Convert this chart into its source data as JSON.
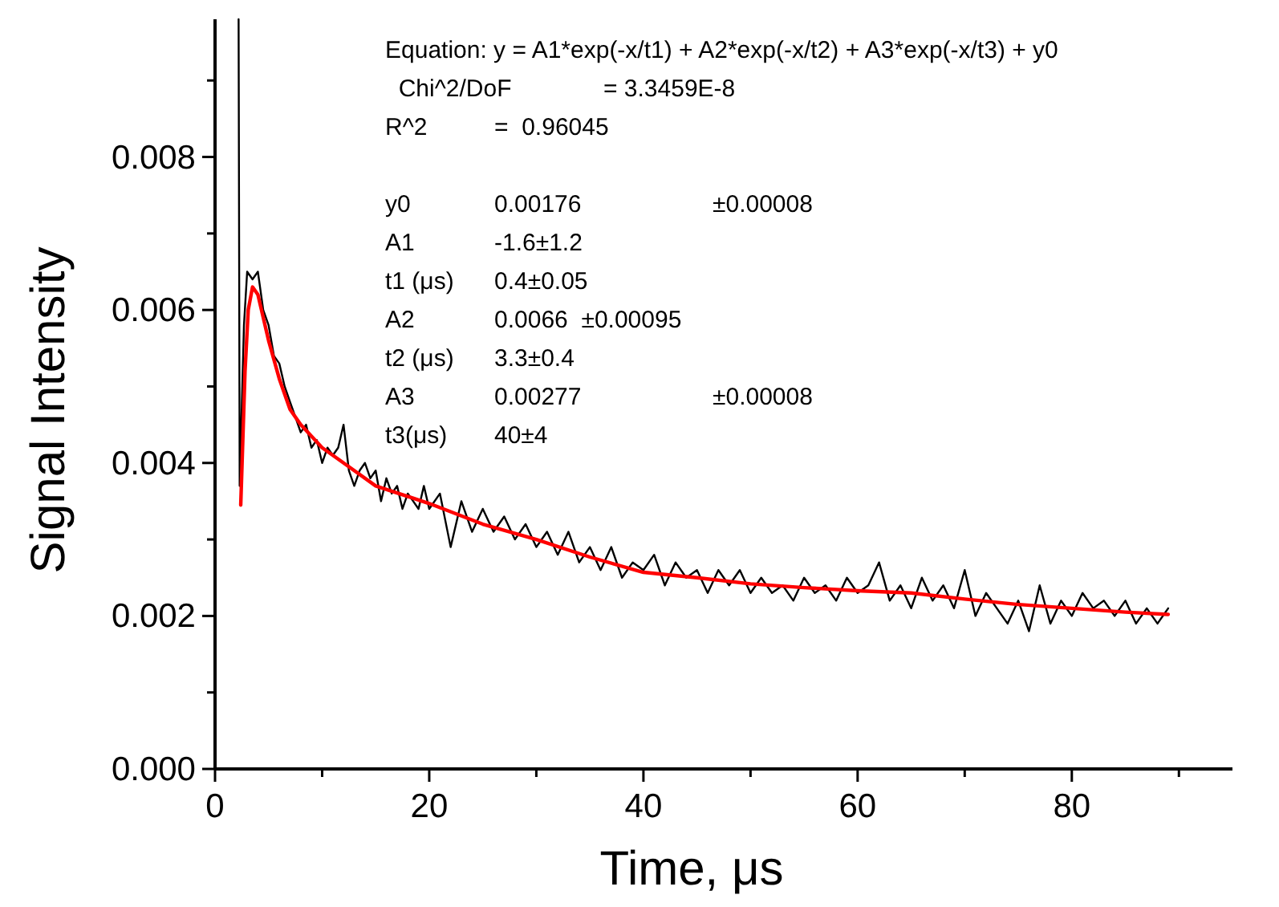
{
  "chart_data": {
    "type": "line",
    "xlabel": "Time, μs",
    "ylabel": "Signal Intensity",
    "xlim": [
      0,
      95
    ],
    "ylim": [
      0,
      0.0098
    ],
    "xticks": [
      0,
      {
        "value": 10,
        "label": null
      },
      20,
      {
        "value": 30,
        "label": null
      },
      40,
      {
        "value": 50,
        "label": null
      },
      60,
      {
        "value": 70,
        "label": null
      },
      80,
      {
        "value": 90,
        "label": null
      }
    ],
    "yticks": [
      {
        "value": 0,
        "label": "0.000"
      },
      {
        "value": 0.001,
        "label": null
      },
      {
        "value": 0.002,
        "label": "0.002"
      },
      {
        "value": 0.003,
        "label": null
      },
      {
        "value": 0.004,
        "label": "0.004"
      },
      {
        "value": 0.005,
        "label": null
      },
      {
        "value": 0.006,
        "label": "0.006"
      },
      {
        "value": 0.007,
        "label": null
      },
      {
        "value": 0.008,
        "label": "0.008"
      },
      {
        "value": 0.009,
        "label": null
      }
    ],
    "grid": false,
    "marker": "none",
    "line_style": "solid",
    "series": [
      {
        "color": "#000000",
        "x": [
          2.2,
          2.3,
          2.7,
          3,
          3.5,
          4,
          4.5,
          5,
          5.5,
          6,
          6.5,
          7,
          7.5,
          8,
          8.5,
          9,
          9.5,
          10,
          10.5,
          11,
          11.5,
          12,
          12.5,
          13,
          13.5,
          14,
          14.5,
          15,
          15.5,
          16,
          16.5,
          17,
          17.5,
          18,
          18.5,
          19,
          19.5,
          20,
          21,
          22,
          23,
          24,
          25,
          26,
          27,
          28,
          29,
          30,
          31,
          32,
          33,
          34,
          35,
          36,
          37,
          38,
          39,
          40,
          41,
          42,
          43,
          44,
          45,
          46,
          47,
          48,
          49,
          50,
          51,
          52,
          53,
          54,
          55,
          56,
          57,
          58,
          59,
          60,
          61,
          62,
          63,
          64,
          65,
          66,
          67,
          68,
          69,
          70,
          71,
          72,
          73,
          74,
          75,
          76,
          77,
          78,
          79,
          80,
          81,
          82,
          83,
          84,
          85,
          86,
          87,
          88,
          89
        ],
        "values": [
          0.0098,
          0.0037,
          0.0058,
          0.0065,
          0.0064,
          0.0065,
          0.006,
          0.0058,
          0.0054,
          0.0053,
          0.005,
          0.0048,
          0.0046,
          0.0044,
          0.0045,
          0.0042,
          0.0043,
          0.004,
          0.0042,
          0.0041,
          0.0042,
          0.0045,
          0.0039,
          0.0037,
          0.0039,
          0.004,
          0.0038,
          0.0039,
          0.0035,
          0.0038,
          0.0036,
          0.0037,
          0.0034,
          0.0036,
          0.0035,
          0.0034,
          0.0037,
          0.0034,
          0.0036,
          0.0029,
          0.0035,
          0.0031,
          0.0034,
          0.0031,
          0.0033,
          0.003,
          0.0032,
          0.0029,
          0.0031,
          0.0028,
          0.0031,
          0.0027,
          0.0029,
          0.0026,
          0.0029,
          0.0025,
          0.0027,
          0.0026,
          0.0028,
          0.0024,
          0.0027,
          0.0025,
          0.0026,
          0.0023,
          0.0026,
          0.0024,
          0.0026,
          0.0023,
          0.0025,
          0.0023,
          0.0024,
          0.0022,
          0.0025,
          0.0023,
          0.0024,
          0.0022,
          0.0025,
          0.0023,
          0.0024,
          0.0027,
          0.0022,
          0.0024,
          0.0021,
          0.0025,
          0.0022,
          0.0024,
          0.0021,
          0.0026,
          0.002,
          0.0023,
          0.0021,
          0.0019,
          0.0022,
          0.0018,
          0.0024,
          0.0019,
          0.0022,
          0.002,
          0.0023,
          0.0021,
          0.0022,
          0.002,
          0.0022,
          0.0019,
          0.0021,
          0.0019,
          0.0021
        ]
      },
      {
        "color": "#ff0000",
        "x": [
          2.4,
          2.8,
          3.1,
          3.5,
          4,
          5,
          6,
          7,
          8,
          10,
          12,
          15,
          20,
          25,
          30,
          35,
          40,
          45,
          50,
          55,
          60,
          65,
          70,
          75,
          80,
          85,
          89
        ],
        "values": [
          0.00345,
          0.0052,
          0.006,
          0.0063,
          0.0062,
          0.0056,
          0.0051,
          0.0047,
          0.0045,
          0.0042,
          0.004,
          0.0037,
          0.00347,
          0.0032,
          0.003,
          0.00277,
          0.00257,
          0.0025,
          0.00242,
          0.00237,
          0.00233,
          0.0023,
          0.00222,
          0.00215,
          0.0021,
          0.00205,
          0.00202
        ]
      }
    ],
    "annotations": [
      "Equation: y = A1*exp(-x/t1) + A2*exp(-x/t2) + A3*exp(-x/t3) + y0",
      "  Chi^2/DoF\t\t= 3.3459E-8",
      "R^2\t=  0.96045",
      "y0\t0.00176\t\t±0.00008",
      "A1\t-1.6±1.2",
      "t1 (μs)\t0.4±0.05",
      "A2\t0.0066  ±0.00095",
      "t2 (μs)\t3.3±0.4",
      "A3\t0.00277\t\t±0.00008",
      "t3(μs)\t40±4"
    ]
  }
}
